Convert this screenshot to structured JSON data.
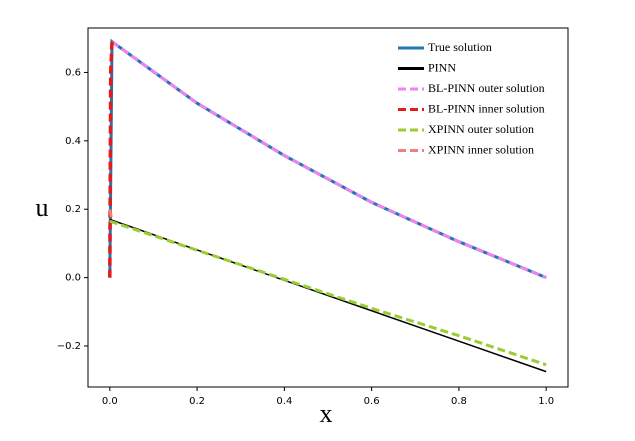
{
  "chart_data": {
    "type": "line",
    "xlabel": "x",
    "ylabel": "u",
    "xlim": [
      -0.05,
      1.05
    ],
    "ylim": [
      -0.32,
      0.73
    ],
    "xticks": [
      {
        "value": 0,
        "label": "0.0"
      },
      0.2,
      0.4,
      0.6,
      0.8,
      {
        "value": 1,
        "label": "1.0"
      }
    ],
    "yticks": [
      {
        "value": -0.2,
        "label": "−0.2"
      },
      {
        "value": 0,
        "label": "0.0"
      },
      0.2,
      0.4,
      0.6
    ],
    "legend": "upper right",
    "series": [
      {
        "name": "True solution",
        "color": "#1f77b4",
        "dashed": false,
        "width": 3,
        "x": [
          0,
          0.005,
          0.2,
          0.4,
          0.6,
          0.8,
          1
        ],
        "values": [
          0,
          0.69,
          0.51,
          0.357,
          0.22,
          0.105,
          0
        ]
      },
      {
        "name": "PINN",
        "color": "#000000",
        "dashed": false,
        "width": 1.5,
        "x": [
          0,
          0.2,
          0.4,
          0.6,
          0.8,
          1
        ],
        "values": [
          0.17,
          0.081,
          -0.008,
          -0.097,
          -0.186,
          -0.275
        ]
      },
      {
        "name": "BL-PINN outer solution",
        "color": "#ee82ee",
        "dashed": true,
        "width": 3,
        "x": [
          0.005,
          0.2,
          0.4,
          0.6,
          0.8,
          1
        ],
        "values": [
          0.69,
          0.51,
          0.357,
          0.22,
          0.105,
          0
        ]
      },
      {
        "name": "BL-PINN inner solution",
        "color": "#e41a1c",
        "dashed": true,
        "width": 3.5,
        "x": [
          0,
          0.002,
          0.005
        ],
        "values": [
          0,
          0.6,
          0.69
        ]
      },
      {
        "name": "XPINN outer solution",
        "color": "#9acd32",
        "dashed": true,
        "width": 3,
        "x": [
          0,
          0.2,
          0.4,
          0.6,
          0.8,
          1
        ],
        "values": [
          0.165,
          0.08,
          -0.005,
          -0.09,
          -0.17,
          -0.255
        ]
      },
      {
        "name": "XPINN inner solution",
        "color": "#f08080",
        "dashed": true,
        "width": 3,
        "x": [
          0,
          0.005
        ],
        "values": [
          0.2,
          0.165
        ]
      }
    ]
  }
}
